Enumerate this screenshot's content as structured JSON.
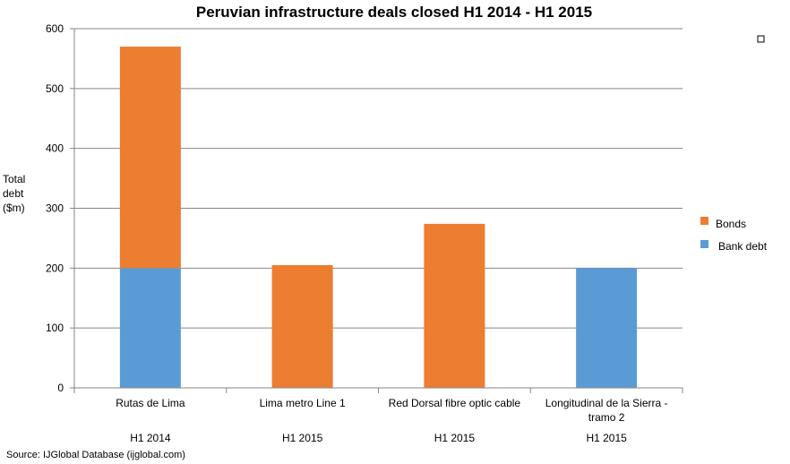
{
  "chart_data": {
    "type": "bar",
    "stacked": true,
    "title": "Peruvian infrastructure deals closed H1 2014 - H1 2015",
    "ylabel": [
      "Total",
      "debt",
      "($m)"
    ],
    "xlabel": "",
    "ylim": [
      0,
      600
    ],
    "yticks": [
      0,
      100,
      200,
      300,
      400,
      500,
      600
    ],
    "grid": true,
    "legend_position": "right",
    "categories": [
      {
        "name": [
          "Rutas de Lima"
        ],
        "period": "H1 2014"
      },
      {
        "name": [
          "Lima metro Line 1"
        ],
        "period": "H1 2015"
      },
      {
        "name": [
          "Red Dorsal fibre optic cable"
        ],
        "period": "H1 2015"
      },
      {
        "name": [
          "Longitudinal de la Sierra -",
          "tramo 2"
        ],
        "period": "H1 2015"
      }
    ],
    "series": [
      {
        "name": "Bank debt",
        "color": "#5B9BD5",
        "values": [
          200,
          0,
          0,
          200
        ]
      },
      {
        "name": "Bonds",
        "color": "#ED7D31",
        "values": [
          370,
          205,
          274,
          0
        ]
      }
    ],
    "legend_order": [
      "Bonds",
      "Bank debt"
    ],
    "source": "Source: IJGlobal Database (ijglobal.com)"
  }
}
